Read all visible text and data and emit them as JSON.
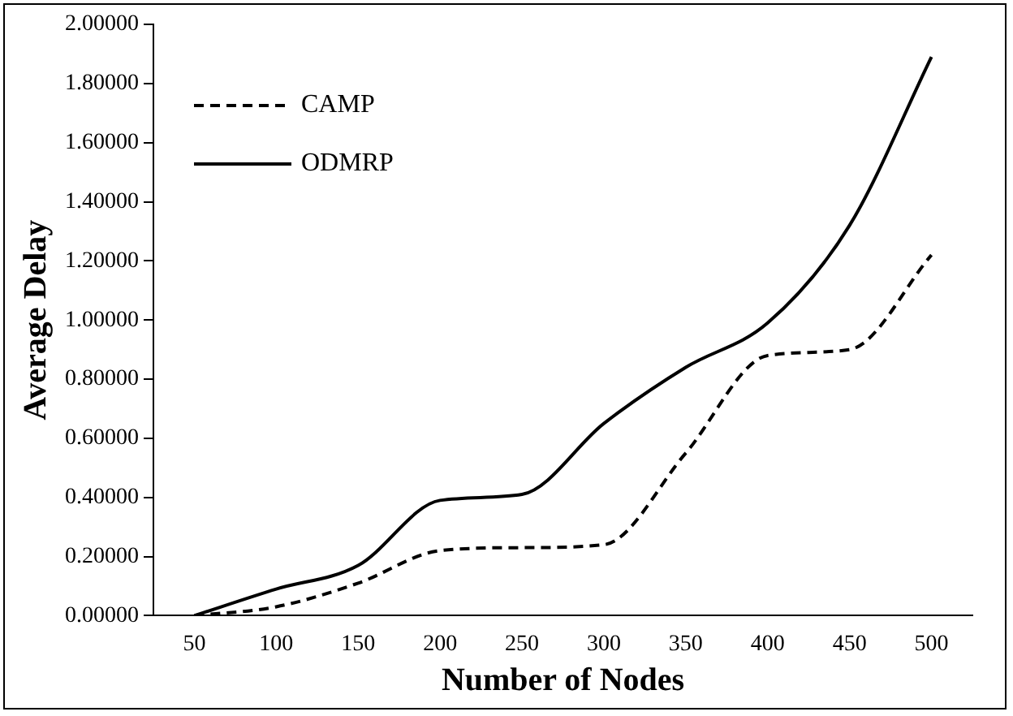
{
  "chart_data": {
    "type": "line",
    "xlabel": "Number of Nodes",
    "ylabel": "Average Delay",
    "categories": [
      "50",
      "100",
      "150",
      "200",
      "250",
      "300",
      "350",
      "400",
      "450",
      "500"
    ],
    "series": [
      {
        "name": "CAMP",
        "color": "#000000",
        "line_style": "dashed",
        "values": [
          0,
          0.03,
          0.11,
          0.22,
          0.23,
          0.24,
          0.55,
          0.88,
          0.9,
          1.22
        ]
      },
      {
        "name": "ODMRP",
        "color": "#000000",
        "line_style": "solid",
        "values": [
          0,
          0.09,
          0.17,
          0.39,
          0.41,
          0.65,
          0.84,
          0.99,
          1.32,
          1.89
        ]
      }
    ],
    "ylim": [
      0,
      2
    ],
    "yticks": [
      {
        "value": 0,
        "label": "0.00000"
      },
      {
        "value": 0.2,
        "label": "0.20000"
      },
      {
        "value": 0.4,
        "label": "0.40000"
      },
      {
        "value": 0.6,
        "label": "0.60000"
      },
      {
        "value": 0.8,
        "label": "0.80000"
      },
      {
        "value": 1,
        "label": "1.00000"
      },
      {
        "value": 1.2,
        "label": "1.20000"
      },
      {
        "value": 1.4,
        "label": "1.40000"
      },
      {
        "value": 1.6,
        "label": "1.60000"
      },
      {
        "value": 1.8,
        "label": "1.80000"
      },
      {
        "value": 2,
        "label": "2.00000"
      }
    ],
    "grid": false,
    "legend": "top left",
    "marker": "none"
  }
}
